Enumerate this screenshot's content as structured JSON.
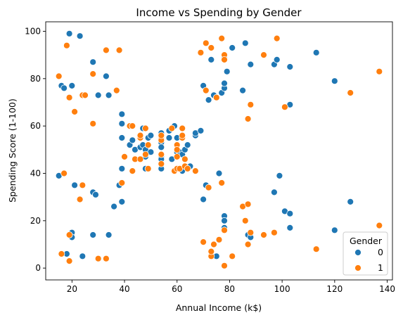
{
  "chart_data": {
    "type": "scatter",
    "title": "Income vs Spending by Gender",
    "xlabel": "Annual Income (k$)",
    "ylabel": "Spending Score (1-100)",
    "xlim": [
      10,
      142
    ],
    "ylim": [
      -5,
      104
    ],
    "xticks": [
      "20",
      "40",
      "60",
      "80",
      "100",
      "120",
      "140"
    ],
    "yticks": [
      "0",
      "20",
      "40",
      "60",
      "80",
      "100"
    ],
    "grid": false,
    "legend": {
      "title": "Gender",
      "placement": "bottom-right"
    },
    "colors": {
      "0": "#1f77b4",
      "1": "#ff7f0e"
    },
    "series": [
      {
        "name": "0",
        "points": [
          [
            15,
            39
          ],
          [
            16,
            6
          ],
          [
            16,
            77
          ],
          [
            17,
            76
          ],
          [
            18,
            6
          ],
          [
            18,
            94
          ],
          [
            19,
            3
          ],
          [
            19,
            72
          ],
          [
            19,
            99
          ],
          [
            20,
            15
          ],
          [
            20,
            13
          ],
          [
            20,
            77
          ],
          [
            21,
            35
          ],
          [
            23,
            98
          ],
          [
            24,
            5
          ],
          [
            25,
            73
          ],
          [
            28,
            14
          ],
          [
            28,
            32
          ],
          [
            28,
            87
          ],
          [
            29,
            31
          ],
          [
            30,
            73
          ],
          [
            33,
            81
          ],
          [
            33,
            92
          ],
          [
            34,
            14
          ],
          [
            34,
            73
          ],
          [
            36,
            26
          ],
          [
            37,
            75
          ],
          [
            38,
            35
          ],
          [
            39,
            28
          ],
          [
            39,
            65
          ],
          [
            39,
            61
          ],
          [
            39,
            42
          ],
          [
            39,
            55
          ],
          [
            40,
            47
          ],
          [
            42,
            60
          ],
          [
            42,
            52
          ],
          [
            43,
            54
          ],
          [
            44,
            50
          ],
          [
            46,
            51
          ],
          [
            46,
            55
          ],
          [
            47,
            59
          ],
          [
            47,
            52
          ],
          [
            48,
            42
          ],
          [
            48,
            47
          ],
          [
            48,
            50
          ],
          [
            49,
            55
          ],
          [
            50,
            49
          ],
          [
            50,
            56
          ],
          [
            54,
            47
          ],
          [
            54,
            53
          ],
          [
            54,
            46
          ],
          [
            54,
            51
          ],
          [
            54,
            42
          ],
          [
            54,
            57
          ],
          [
            57,
            55
          ],
          [
            57,
            58
          ],
          [
            58,
            46
          ],
          [
            59,
            60
          ],
          [
            60,
            49
          ],
          [
            60,
            55
          ],
          [
            61,
            49
          ],
          [
            62,
            48
          ],
          [
            62,
            41
          ],
          [
            63,
            50
          ],
          [
            63,
            46
          ],
          [
            64,
            52
          ],
          [
            65,
            43
          ],
          [
            67,
            56
          ],
          [
            67,
            57
          ],
          [
            69,
            58
          ],
          [
            70,
            29
          ],
          [
            70,
            77
          ],
          [
            71,
            35
          ],
          [
            72,
            71
          ],
          [
            73,
            88
          ],
          [
            74,
            73
          ],
          [
            75,
            5
          ],
          [
            76,
            40
          ],
          [
            77,
            74
          ],
          [
            78,
            22
          ],
          [
            78,
            76
          ],
          [
            78,
            20
          ],
          [
            78,
            17
          ],
          [
            78,
            89
          ],
          [
            78,
            78
          ],
          [
            79,
            83
          ],
          [
            81,
            93
          ],
          [
            85,
            75
          ],
          [
            86,
            95
          ],
          [
            87,
            14
          ],
          [
            88,
            86
          ],
          [
            88,
            13
          ],
          [
            97,
            32
          ],
          [
            97,
            86
          ],
          [
            98,
            88
          ],
          [
            99,
            39
          ],
          [
            101,
            24
          ],
          [
            103,
            17
          ],
          [
            103,
            85
          ],
          [
            103,
            23
          ],
          [
            103,
            69
          ],
          [
            113,
            91
          ],
          [
            120,
            16
          ],
          [
            120,
            79
          ],
          [
            126,
            28
          ]
        ]
      },
      {
        "name": "1",
        "points": [
          [
            15,
            81
          ],
          [
            16,
            6
          ],
          [
            17,
            40
          ],
          [
            18,
            94
          ],
          [
            19,
            72
          ],
          [
            19,
            3
          ],
          [
            19,
            14
          ],
          [
            21,
            66
          ],
          [
            23,
            29
          ],
          [
            24,
            35
          ],
          [
            24,
            73
          ],
          [
            25,
            73
          ],
          [
            28,
            82
          ],
          [
            28,
            61
          ],
          [
            30,
            4
          ],
          [
            33,
            4
          ],
          [
            33,
            92
          ],
          [
            37,
            75
          ],
          [
            38,
            92
          ],
          [
            39,
            36
          ],
          [
            40,
            47
          ],
          [
            42,
            60
          ],
          [
            43,
            60
          ],
          [
            43,
            41
          ],
          [
            44,
            46
          ],
          [
            46,
            55
          ],
          [
            46,
            56
          ],
          [
            46,
            46
          ],
          [
            48,
            59
          ],
          [
            48,
            48
          ],
          [
            49,
            52
          ],
          [
            49,
            42
          ],
          [
            54,
            55
          ],
          [
            54,
            54
          ],
          [
            54,
            48
          ],
          [
            54,
            56
          ],
          [
            54,
            44
          ],
          [
            58,
            59
          ],
          [
            59,
            41
          ],
          [
            60,
            52
          ],
          [
            60,
            47
          ],
          [
            60,
            42
          ],
          [
            60,
            50
          ],
          [
            61,
            42
          ],
          [
            62,
            55
          ],
          [
            62,
            56
          ],
          [
            62,
            59
          ],
          [
            63,
            43
          ],
          [
            63,
            46
          ],
          [
            64,
            42
          ],
          [
            67,
            41
          ],
          [
            69,
            91
          ],
          [
            70,
            11
          ],
          [
            71,
            95
          ],
          [
            71,
            75
          ],
          [
            72,
            34
          ],
          [
            73,
            5
          ],
          [
            73,
            93
          ],
          [
            73,
            7
          ],
          [
            74,
            10
          ],
          [
            75,
            72
          ],
          [
            76,
            12
          ],
          [
            77,
            97
          ],
          [
            77,
            36
          ],
          [
            78,
            90
          ],
          [
            78,
            16
          ],
          [
            78,
            1
          ],
          [
            78,
            88
          ],
          [
            81,
            5
          ],
          [
            85,
            26
          ],
          [
            86,
            20
          ],
          [
            87,
            27
          ],
          [
            87,
            63
          ],
          [
            87,
            10
          ],
          [
            88,
            15
          ],
          [
            88,
            69
          ],
          [
            93,
            14
          ],
          [
            93,
            90
          ],
          [
            97,
            15
          ],
          [
            98,
            97
          ],
          [
            101,
            68
          ],
          [
            113,
            8
          ],
          [
            126,
            74
          ],
          [
            137,
            18
          ],
          [
            137,
            83
          ]
        ]
      }
    ]
  }
}
